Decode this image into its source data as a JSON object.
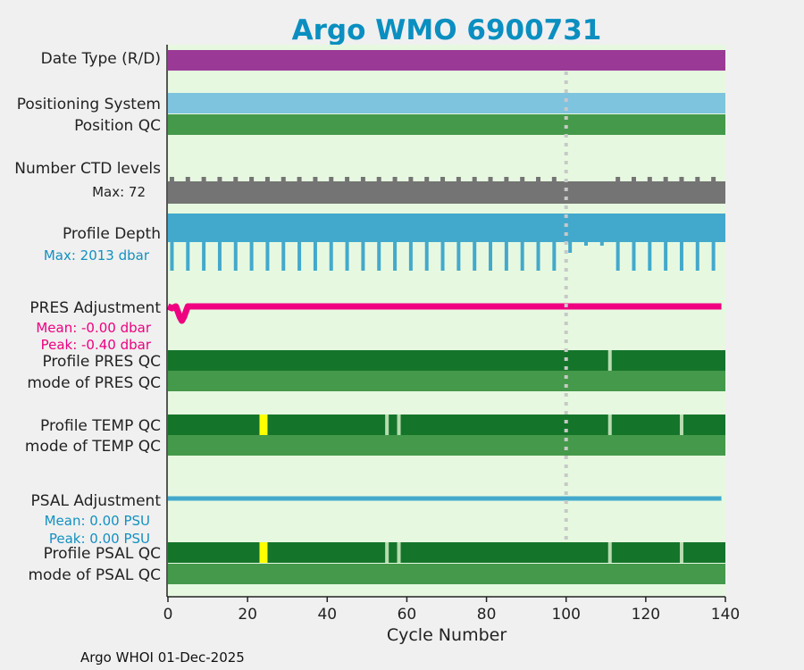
{
  "chart_data": {
    "type": "bar",
    "title": "Argo WMO 6900731",
    "xlabel": "Cycle Number",
    "xlim": [
      0,
      140
    ],
    "xticks": [
      "0",
      "20",
      "40",
      "60",
      "80",
      "100",
      "120",
      "140"
    ],
    "footer": "Argo WHOI 01-Dec-2025",
    "marker_cycle": 100,
    "colors": {
      "title": "#0a8fc0",
      "bg": "#e6f9e0",
      "date": "#9a3a96",
      "pos_sys": "#7fc4de",
      "qc_good": "#45994a",
      "qc_dark": "#14752a",
      "qc_probably": "#ffff00",
      "qc_gap": "#b8dcb0",
      "ctd": "#747474",
      "depth": "#43a9cc",
      "pres_adj": "#ee0080",
      "psal_adj": "#43a9cc"
    },
    "rows": {
      "date_type": "Date Type (R/D)",
      "positioning_system": "Positioning System",
      "position_qc": "Position QC",
      "ctd_levels": "Number CTD levels",
      "ctd_max": "Max: 72",
      "profile_depth": "Profile Depth",
      "depth_max": "Max: 2013 dbar",
      "pres_adjustment": "PRES Adjustment",
      "pres_mean": "Mean: -0.00 dbar",
      "pres_peak": "Peak: -0.40 dbar",
      "profile_pres_qc": "Profile PRES QC",
      "mode_pres_qc": "mode of PRES QC",
      "profile_temp_qc": "Profile TEMP QC",
      "mode_temp_qc": "mode of TEMP QC",
      "psal_adjustment": "PSAL Adjustment",
      "psal_mean": "Mean: 0.00 PSU",
      "psal_peak": "Peak: 0.00 PSU",
      "profile_psal_qc": "Profile PSAL QC",
      "mode_psal_qc": "mode of PSAL QC"
    },
    "deep_profile_cycles": [
      1,
      5,
      9,
      13,
      17,
      21,
      25,
      29,
      33,
      37,
      41,
      45,
      49,
      53,
      57,
      61,
      65,
      69,
      73,
      77,
      81,
      85,
      89,
      93,
      97,
      113,
      117,
      121,
      125,
      129,
      133,
      137
    ],
    "shallow_profile_cycles": [
      101,
      105,
      109
    ],
    "pres_qc_gaps": [
      111
    ],
    "temp_psal_qc_gaps": [
      55,
      58,
      111,
      129
    ],
    "temp_psal_qc_flag3": [
      24
    ],
    "pres_adjustment_values": {
      "cycles": [
        0,
        1,
        2,
        3,
        3.5,
        4,
        5,
        6,
        139
      ],
      "values": [
        0,
        -0.05,
        0,
        -0.3,
        -0.4,
        -0.3,
        0,
        0,
        0
      ]
    },
    "psal_adjustment_range": [
      0,
      139
    ]
  }
}
